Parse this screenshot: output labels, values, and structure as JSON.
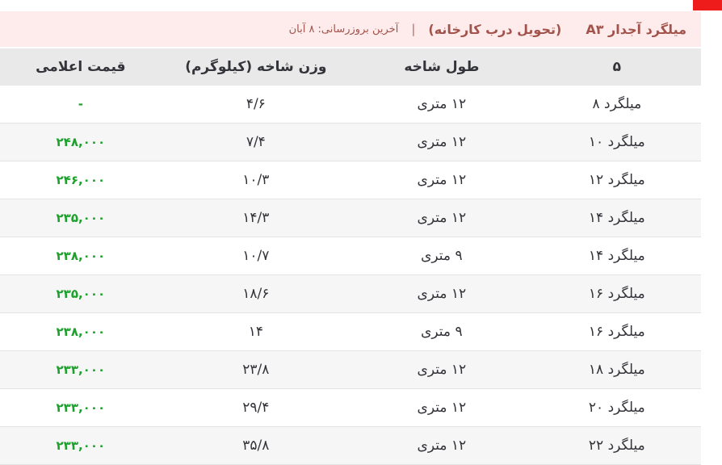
{
  "theme": {
    "ribbon_red": "#ef1c1c",
    "banner_bg": "#fdeceb",
    "banner_text": "#a2544c",
    "header_bg": "#e9e9e9",
    "alt_row_bg": "#f6f6f6",
    "row_border": "#e3e3e3",
    "text_dark": "#33333a",
    "price_green": "#1ca12c"
  },
  "banner": {
    "title": "میلگرد آجدار A۳",
    "subtitle": "(تحویل درب کارخانه)",
    "divider": "|",
    "last_update": "آخرین بروزرسانی: ۸ آبان"
  },
  "table": {
    "columns": {
      "size": "۵",
      "length": "طول شاخه",
      "weight": "وزن شاخه (کیلوگرم)",
      "price": "قیمت اعلامی"
    },
    "rows": [
      {
        "size": "میلگرد ۸",
        "length": "۱۲ متری",
        "weight": "۴/۶",
        "price": "-"
      },
      {
        "size": "میلگرد ۱۰",
        "length": "۱۲ متری",
        "weight": "۷/۴",
        "price": "۲۴۸,۰۰۰"
      },
      {
        "size": "میلگرد ۱۲",
        "length": "۱۲ متری",
        "weight": "۱۰/۳",
        "price": "۲۴۶,۰۰۰"
      },
      {
        "size": "میلگرد ۱۴",
        "length": "۱۲ متری",
        "weight": "۱۴/۳",
        "price": "۲۳۵,۰۰۰"
      },
      {
        "size": "میلگرد ۱۴",
        "length": "۹ متری",
        "weight": "۱۰/۷",
        "price": "۲۳۸,۰۰۰"
      },
      {
        "size": "میلگرد ۱۶",
        "length": "۱۲ متری",
        "weight": "۱۸/۶",
        "price": "۲۳۵,۰۰۰"
      },
      {
        "size": "میلگرد ۱۶",
        "length": "۹ متری",
        "weight": "۱۴",
        "price": "۲۳۸,۰۰۰"
      },
      {
        "size": "میلگرد ۱۸",
        "length": "۱۲ متری",
        "weight": "۲۳/۸",
        "price": "۲۳۳,۰۰۰"
      },
      {
        "size": "میلگرد ۲۰",
        "length": "۱۲ متری",
        "weight": "۲۹/۴",
        "price": "۲۳۳,۰۰۰"
      },
      {
        "size": "میلگرد ۲۲",
        "length": "۱۲ متری",
        "weight": "۳۵/۸",
        "price": "۲۳۳,۰۰۰"
      }
    ]
  }
}
